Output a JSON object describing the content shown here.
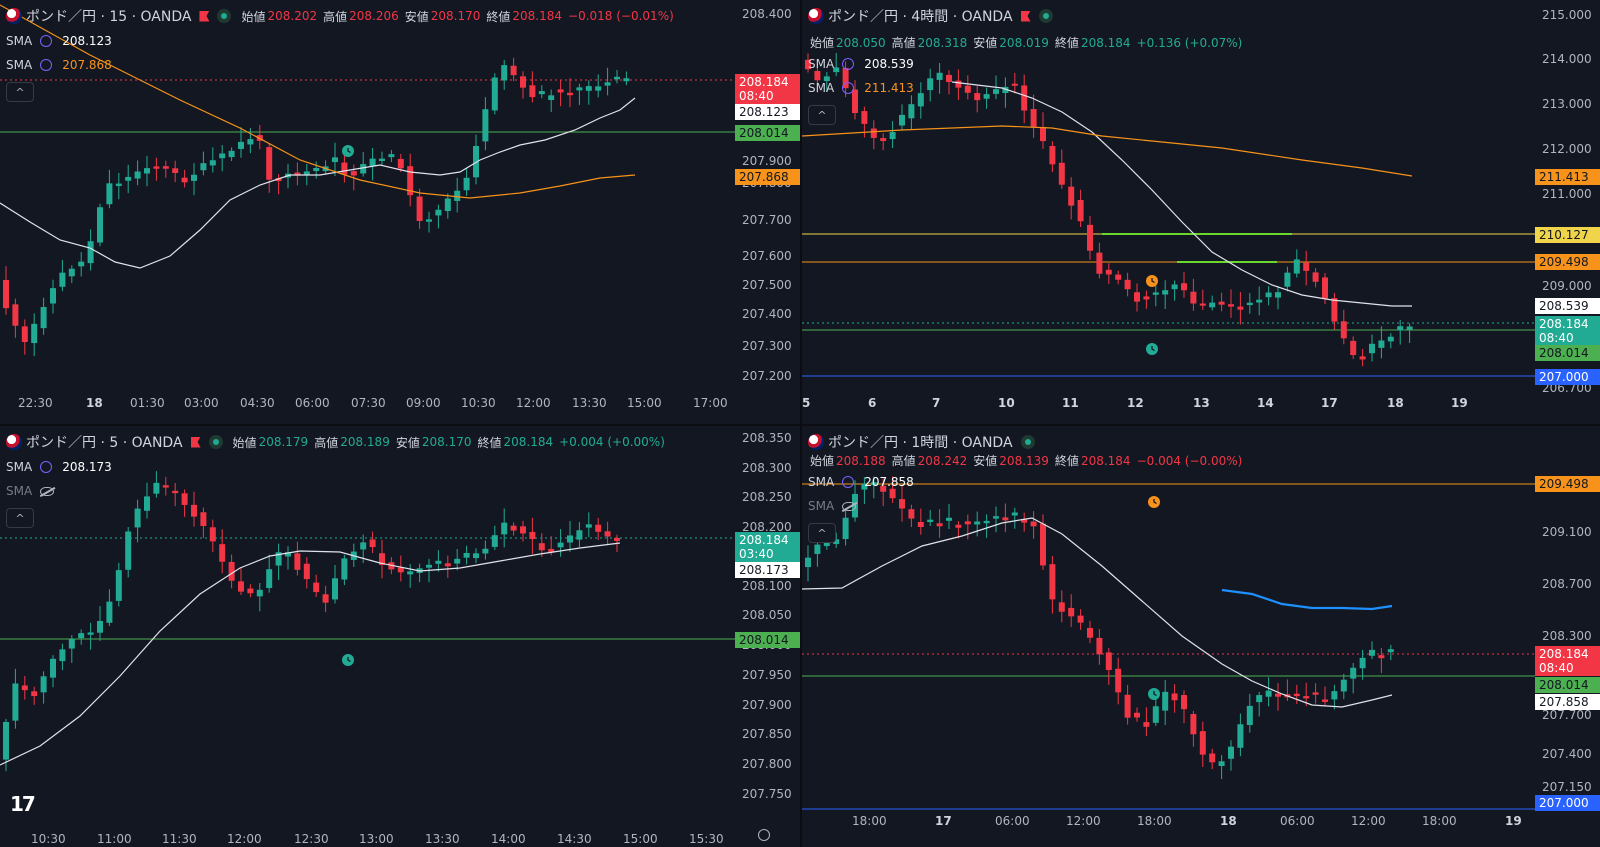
{
  "colors": {
    "bg": "#131722",
    "up": "#22ab94",
    "down": "#f23645",
    "sma_white": "#e0e3eb",
    "sma_orange": "#f7931a",
    "green_line": "#4caf50",
    "orange_line": "#f7931a",
    "yellow_line": "#f0d54a",
    "blue_line": "#2962ff",
    "lime_line": "#69d72b",
    "cyan_line": "#1e90ff"
  },
  "icons": [
    "gbp-jpy-flag-icon",
    "market-flag-icon",
    "live-status-icon",
    "sma-settings-icon",
    "visibility-off-icon",
    "collapse-chevron-icon",
    "alert-clock-icon",
    "tradingview-logo-icon",
    "settings-gear-icon"
  ],
  "panels": [
    {
      "id": "p15",
      "symbol": "ポンド／円 · 15 · OANDA",
      "ohlc": [
        {
          "k": "始値",
          "v": "208.202"
        },
        {
          "k": "高値",
          "v": "208.206"
        },
        {
          "k": "安値",
          "v": "208.170"
        },
        {
          "k": "終値",
          "v": "208.184"
        },
        {
          "k": "",
          "v": "−0.018 (−0.01%)"
        }
      ],
      "ohlc_color": "#f23645",
      "sma": [
        {
          "name": "SMA",
          "value": "208.123",
          "color": "#ffffff",
          "hidden": false
        },
        {
          "name": "SMA",
          "value": "207.868",
          "color": "#f7931a",
          "hidden": false
        }
      ],
      "price_axis": [
        "208.400",
        "207.900",
        "207.800",
        "207.700",
        "207.600",
        "207.500",
        "207.400",
        "207.300",
        "207.200"
      ],
      "time_axis": [
        "22:30",
        "18",
        "01:30",
        "03:00",
        "04:30",
        "06:00",
        "07:30",
        "09:00",
        "10:30",
        "12:00",
        "13:30",
        "15:00",
        "17:00"
      ],
      "tags": [
        {
          "text": "208.184",
          "sub": "08:40",
          "bg": "#f23645",
          "fg": "#ffffff"
        },
        {
          "text": "208.123",
          "sub": "",
          "bg": "#ffffff",
          "fg": "#131722"
        },
        {
          "text": "208.014",
          "sub": "",
          "bg": "#4caf50",
          "fg": "#131722"
        },
        {
          "text": "207.868",
          "sub": "",
          "bg": "#f7931a",
          "fg": "#131722"
        }
      ]
    },
    {
      "id": "p4h",
      "symbol": "ポンド／円 · 4時間 · OANDA",
      "ohlc": [
        {
          "k": "始値",
          "v": "208.050"
        },
        {
          "k": "高値",
          "v": "208.318"
        },
        {
          "k": "安値",
          "v": "208.019"
        },
        {
          "k": "終値",
          "v": "208.184"
        },
        {
          "k": "",
          "v": "+0.136 (+0.07%)"
        }
      ],
      "ohlc_color": "#22ab94",
      "sma": [
        {
          "name": "SMA",
          "value": "208.539",
          "color": "#ffffff",
          "hidden": false
        },
        {
          "name": "SMA",
          "value": "211.413",
          "color": "#f7931a",
          "hidden": false
        }
      ],
      "price_axis": [
        "215.000",
        "214.000",
        "213.000",
        "212.000",
        "211.000",
        "209.000",
        "206.700"
      ],
      "time_axis": [
        "5",
        "6",
        "7",
        "10",
        "11",
        "12",
        "13",
        "14",
        "17",
        "18",
        "19"
      ],
      "tags": [
        {
          "text": "211.413",
          "sub": "",
          "bg": "#f7931a",
          "fg": "#131722"
        },
        {
          "text": "210.127",
          "sub": "",
          "bg": "#f0d54a",
          "fg": "#131722"
        },
        {
          "text": "209.498",
          "sub": "",
          "bg": "#f7931a",
          "fg": "#131722"
        },
        {
          "text": "208.539",
          "sub": "",
          "bg": "#ffffff",
          "fg": "#131722"
        },
        {
          "text": "208.184",
          "sub": "08:40",
          "bg": "#22ab94",
          "fg": "#ffffff"
        },
        {
          "text": "208.014",
          "sub": "",
          "bg": "#4caf50",
          "fg": "#131722"
        },
        {
          "text": "207.000",
          "sub": "",
          "bg": "#2962ff",
          "fg": "#ffffff"
        }
      ]
    },
    {
      "id": "p5",
      "symbol": "ポンド／円 · 5 · OANDA",
      "ohlc": [
        {
          "k": "始値",
          "v": "208.179"
        },
        {
          "k": "高値",
          "v": "208.189"
        },
        {
          "k": "安値",
          "v": "208.170"
        },
        {
          "k": "終値",
          "v": "208.184"
        },
        {
          "k": "",
          "v": "+0.004 (+0.00%)"
        }
      ],
      "ohlc_color": "#22ab94",
      "sma": [
        {
          "name": "SMA",
          "value": "208.173",
          "color": "#ffffff",
          "hidden": false
        },
        {
          "name": "SMA",
          "value": "",
          "color": "#787b86",
          "hidden": true
        }
      ],
      "price_axis": [
        "208.350",
        "208.300",
        "208.250",
        "208.200",
        "208.100",
        "208.050",
        "208.000",
        "207.950",
        "207.900",
        "207.850",
        "207.800",
        "207.750"
      ],
      "time_axis": [
        "10:30",
        "11:00",
        "11:30",
        "12:00",
        "12:30",
        "13:00",
        "13:30",
        "14:00",
        "14:30",
        "15:00",
        "15:30"
      ],
      "tags": [
        {
          "text": "208.184",
          "sub": "03:40",
          "bg": "#22ab94",
          "fg": "#ffffff"
        },
        {
          "text": "208.173",
          "sub": "",
          "bg": "#ffffff",
          "fg": "#131722"
        },
        {
          "text": "208.014",
          "sub": "",
          "bg": "#4caf50",
          "fg": "#131722"
        }
      ]
    },
    {
      "id": "p1h",
      "symbol": "ポンド／円 · 1時間 · OANDA",
      "ohlc": [
        {
          "k": "始値",
          "v": "208.188"
        },
        {
          "k": "高値",
          "v": "208.242"
        },
        {
          "k": "安値",
          "v": "208.139"
        },
        {
          "k": "終値",
          "v": "208.184"
        },
        {
          "k": "",
          "v": "−0.004 (−0.00%)"
        }
      ],
      "ohlc_color": "#f23645",
      "sma": [
        {
          "name": "SMA",
          "value": "207.858",
          "color": "#ffffff",
          "hidden": false
        },
        {
          "name": "SMA",
          "value": "",
          "color": "#787b86",
          "hidden": true
        }
      ],
      "price_axis": [
        "209.100",
        "208.700",
        "208.300",
        "207.700",
        "207.400",
        "207.150"
      ],
      "time_axis": [
        "18:00",
        "17",
        "06:00",
        "12:00",
        "18:00",
        "18",
        "06:00",
        "12:00",
        "18:00",
        "19"
      ],
      "tags": [
        {
          "text": "209.498",
          "sub": "",
          "bg": "#f7931a",
          "fg": "#131722"
        },
        {
          "text": "208.184",
          "sub": "08:40",
          "bg": "#f23645",
          "fg": "#ffffff"
        },
        {
          "text": "208.014",
          "sub": "",
          "bg": "#4caf50",
          "fg": "#131722"
        },
        {
          "text": "207.858",
          "sub": "",
          "bg": "#ffffff",
          "fg": "#131722"
        },
        {
          "text": "207.000",
          "sub": "",
          "bg": "#2962ff",
          "fg": "#ffffff"
        }
      ]
    }
  ]
}
